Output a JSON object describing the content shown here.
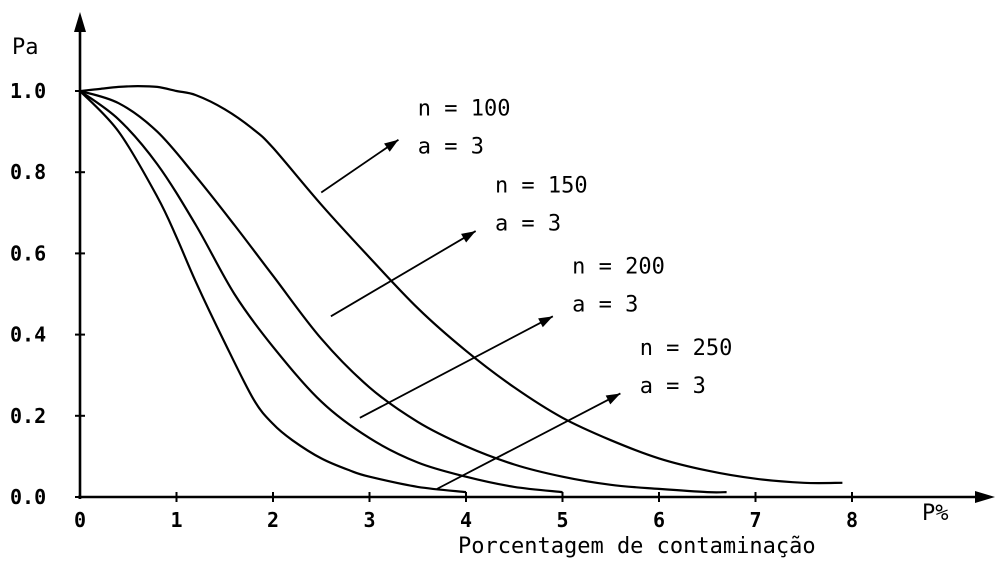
{
  "chart_data": {
    "type": "line",
    "title": "",
    "ylabel": "Pa",
    "xlabel_unit": "P%",
    "xlabel": "Porcentagem de contaminação",
    "xlim": [
      0,
      9
    ],
    "ylim": [
      0,
      1.0
    ],
    "grid": false,
    "x_ticks": [
      "0",
      "1",
      "2",
      "3",
      "4",
      "5",
      "6",
      "7",
      "8"
    ],
    "y_ticks": [
      "0.0",
      "0.2",
      "0.4",
      "0.6",
      "0.8",
      "1.0"
    ],
    "series": [
      {
        "n_label": "n = 100",
        "a_label": "a = 3",
        "x": [
          0,
          0.2,
          0.4,
          0.6,
          0.8,
          1.0,
          1.2,
          1.5,
          1.8,
          2.0,
          2.5,
          3.0,
          3.5,
          4.0,
          4.5,
          5.0,
          5.5,
          6.0,
          6.5,
          7.0,
          7.5,
          7.9
        ],
        "y": [
          1.0,
          1.005,
          1.01,
          1.012,
          1.01,
          1.0,
          0.99,
          0.955,
          0.905,
          0.86,
          0.72,
          0.59,
          0.465,
          0.36,
          0.27,
          0.195,
          0.14,
          0.095,
          0.065,
          0.045,
          0.035,
          0.035
        ]
      },
      {
        "n_label": "n = 150",
        "a_label": "a = 3",
        "x": [
          0,
          0.4,
          0.8,
          1.2,
          1.6,
          2.0,
          2.5,
          3.0,
          3.5,
          4.0,
          4.5,
          5.0,
          5.5,
          6.0,
          6.5,
          6.7
        ],
        "y": [
          1.0,
          0.97,
          0.9,
          0.79,
          0.67,
          0.545,
          0.39,
          0.27,
          0.185,
          0.125,
          0.08,
          0.05,
          0.03,
          0.02,
          0.012,
          0.012
        ]
      },
      {
        "n_label": "n = 200",
        "a_label": "a = 3",
        "x": [
          0,
          0.4,
          0.8,
          1.2,
          1.6,
          2.0,
          2.5,
          3.0,
          3.5,
          4.0,
          4.5,
          5.0
        ],
        "y": [
          1.0,
          0.93,
          0.82,
          0.67,
          0.5,
          0.37,
          0.235,
          0.145,
          0.085,
          0.05,
          0.025,
          0.012
        ]
      },
      {
        "n_label": "n = 250",
        "a_label": "a = 3",
        "x": [
          0,
          0.4,
          0.8,
          1.0,
          1.2,
          1.5,
          1.8,
          2.0,
          2.2,
          2.5,
          2.8,
          3.0,
          3.5,
          4.0
        ],
        "y": [
          1.0,
          0.9,
          0.74,
          0.64,
          0.53,
          0.38,
          0.24,
          0.18,
          0.14,
          0.095,
          0.065,
          0.05,
          0.025,
          0.012
        ]
      }
    ],
    "annotations": [
      {
        "series": 0,
        "from": [
          2.5,
          0.75
        ],
        "to": [
          3.3,
          0.88
        ]
      },
      {
        "series": 1,
        "from": [
          2.6,
          0.445
        ],
        "to": [
          4.1,
          0.655
        ]
      },
      {
        "series": 2,
        "from": [
          2.9,
          0.195
        ],
        "to": [
          4.9,
          0.445
        ]
      },
      {
        "series": 3,
        "from": [
          3.7,
          0.02
        ],
        "to": [
          5.6,
          0.255
        ]
      }
    ],
    "annotation_label_anchor": [
      [
        3.5,
        0.94
      ],
      [
        4.3,
        0.75
      ],
      [
        5.1,
        0.55
      ],
      [
        5.8,
        0.35
      ]
    ]
  }
}
